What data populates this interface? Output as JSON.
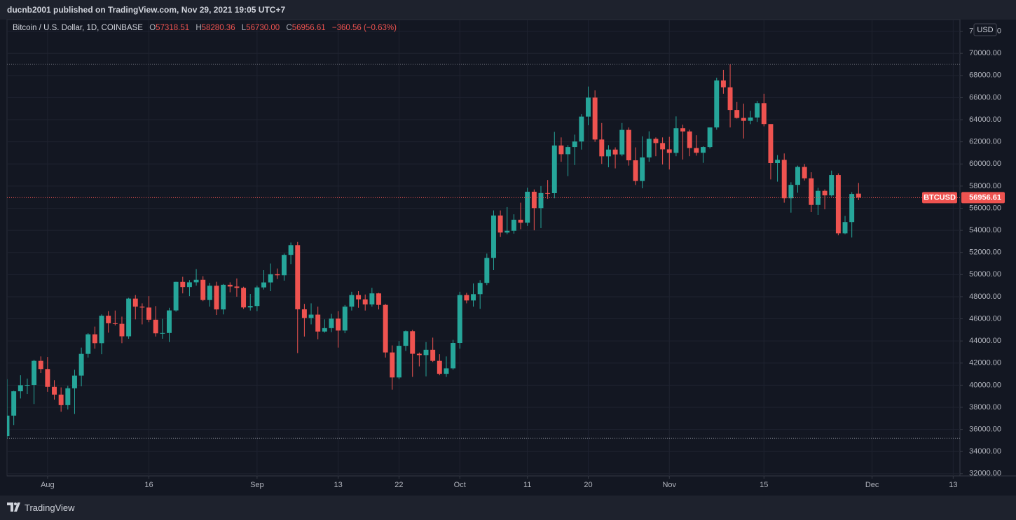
{
  "header": {
    "published": "ducnb2001 published on TradingView.com, Nov 29, 2021 19:05 UTC+7"
  },
  "footer": {
    "brand": "TradingView"
  },
  "chart_data": {
    "type": "candlestick",
    "title": "Bitcoin / U.S. Dollar, 1D, COINBASE",
    "legend": {
      "o": "O",
      "open": "57318.51",
      "h": "H",
      "high": "58280.36",
      "l": "L",
      "low": "56730.00",
      "c": "C",
      "close": "56956.61",
      "change": "−360.56 (−0.63%)"
    },
    "currency": "USD",
    "symbol": "BTCUSD",
    "up_color": "#26a69a",
    "down_color": "#ef5350",
    "grid": true,
    "xlim": [
      "2021-07-26",
      "2021-12-14"
    ],
    "xticks": [
      {
        "value": "2021-08-01",
        "label": "Aug"
      },
      {
        "value": "2021-08-16",
        "label": "16"
      },
      {
        "value": "2021-09-01",
        "label": "Sep"
      },
      {
        "value": "2021-09-13",
        "label": "13"
      },
      {
        "value": "2021-09-22",
        "label": "22"
      },
      {
        "value": "2021-10-01",
        "label": "Oct"
      },
      {
        "value": "2021-10-11",
        "label": "11"
      },
      {
        "value": "2021-10-20",
        "label": "20"
      },
      {
        "value": "2021-11-01",
        "label": "Nov"
      },
      {
        "value": "2021-11-15",
        "label": "15"
      },
      {
        "value": "2021-12-01",
        "label": "Dec"
      },
      {
        "value": "2021-12-13",
        "label": "13"
      }
    ],
    "ylim": [
      31800,
      73050
    ],
    "yticks": [
      {
        "value": 32000,
        "label": "32000.00"
      },
      {
        "value": 34000,
        "label": "34000.00"
      },
      {
        "value": 36000,
        "label": "36000.00"
      },
      {
        "value": 38000,
        "label": "38000.00"
      },
      {
        "value": 40000,
        "label": "40000.00"
      },
      {
        "value": 42000,
        "label": "42000.00"
      },
      {
        "value": 44000,
        "label": "44000.00"
      },
      {
        "value": 46000,
        "label": "46000.00"
      },
      {
        "value": 48000,
        "label": "48000.00"
      },
      {
        "value": 50000,
        "label": "50000.00"
      },
      {
        "value": 52000,
        "label": "52000.00"
      },
      {
        "value": 54000,
        "label": "54000.00"
      },
      {
        "value": 56000,
        "label": "56000.00"
      },
      {
        "value": 58000,
        "label": "58000.00"
      },
      {
        "value": 60000,
        "label": "60000.00"
      },
      {
        "value": 62000,
        "label": "62000.00"
      },
      {
        "value": 64000,
        "label": "64000.00"
      },
      {
        "value": 66000,
        "label": "66000.00"
      },
      {
        "value": 68000,
        "label": "68000.00"
      },
      {
        "value": 70000,
        "label": "70000.00"
      },
      {
        "value": 72000,
        "label": "72000.00"
      }
    ],
    "x": [
      "2021-07-26",
      "2021-07-27",
      "2021-07-28",
      "2021-07-29",
      "2021-07-30",
      "2021-07-31",
      "2021-08-01",
      "2021-08-02",
      "2021-08-03",
      "2021-08-04",
      "2021-08-05",
      "2021-08-06",
      "2021-08-07",
      "2021-08-08",
      "2021-08-09",
      "2021-08-10",
      "2021-08-11",
      "2021-08-12",
      "2021-08-13",
      "2021-08-14",
      "2021-08-15",
      "2021-08-16",
      "2021-08-17",
      "2021-08-18",
      "2021-08-19",
      "2021-08-20",
      "2021-08-21",
      "2021-08-22",
      "2021-08-23",
      "2021-08-24",
      "2021-08-25",
      "2021-08-26",
      "2021-08-27",
      "2021-08-28",
      "2021-08-29",
      "2021-08-30",
      "2021-08-31",
      "2021-09-01",
      "2021-09-02",
      "2021-09-03",
      "2021-09-04",
      "2021-09-05",
      "2021-09-06",
      "2021-09-07",
      "2021-09-08",
      "2021-09-09",
      "2021-09-10",
      "2021-09-11",
      "2021-09-12",
      "2021-09-13",
      "2021-09-14",
      "2021-09-15",
      "2021-09-16",
      "2021-09-17",
      "2021-09-18",
      "2021-09-19",
      "2021-09-20",
      "2021-09-21",
      "2021-09-22",
      "2021-09-23",
      "2021-09-24",
      "2021-09-25",
      "2021-09-26",
      "2021-09-27",
      "2021-09-28",
      "2021-09-29",
      "2021-09-30",
      "2021-10-01",
      "2021-10-02",
      "2021-10-03",
      "2021-10-04",
      "2021-10-05",
      "2021-10-06",
      "2021-10-07",
      "2021-10-08",
      "2021-10-09",
      "2021-10-10",
      "2021-10-11",
      "2021-10-12",
      "2021-10-13",
      "2021-10-14",
      "2021-10-15",
      "2021-10-16",
      "2021-10-17",
      "2021-10-18",
      "2021-10-19",
      "2021-10-20",
      "2021-10-21",
      "2021-10-22",
      "2021-10-23",
      "2021-10-24",
      "2021-10-25",
      "2021-10-26",
      "2021-10-27",
      "2021-10-28",
      "2021-10-29",
      "2021-10-30",
      "2021-10-31",
      "2021-11-01",
      "2021-11-02",
      "2021-11-03",
      "2021-11-04",
      "2021-11-05",
      "2021-11-06",
      "2021-11-07",
      "2021-11-08",
      "2021-11-09",
      "2021-11-10",
      "2021-11-11",
      "2021-11-12",
      "2021-11-13",
      "2021-11-14",
      "2021-11-15",
      "2021-11-16",
      "2021-11-17",
      "2021-11-18",
      "2021-11-19",
      "2021-11-20",
      "2021-11-21",
      "2021-11-22",
      "2021-11-23",
      "2021-11-24",
      "2021-11-25",
      "2021-11-26",
      "2021-11-27",
      "2021-11-28",
      "2021-11-29"
    ],
    "candles": [
      [
        35400,
        40550,
        35200,
        37250
      ],
      [
        37250,
        39500,
        36400,
        39450
      ],
      [
        39450,
        40900,
        38800,
        40000
      ],
      [
        40000,
        40600,
        39200,
        40020
      ],
      [
        40020,
        42300,
        38300,
        42200
      ],
      [
        42200,
        42600,
        41100,
        41460
      ],
      [
        41460,
        42550,
        39400,
        39850
      ],
      [
        39850,
        40450,
        38700,
        39150
      ],
      [
        39150,
        39800,
        37600,
        38200
      ],
      [
        38200,
        39950,
        37800,
        39720
      ],
      [
        39720,
        41400,
        37400,
        40870
      ],
      [
        40870,
        43400,
        39900,
        42830
      ],
      [
        42830,
        44700,
        42500,
        44600
      ],
      [
        44600,
        45300,
        43300,
        43800
      ],
      [
        43800,
        46400,
        42800,
        46280
      ],
      [
        46280,
        46700,
        44750,
        45600
      ],
      [
        45600,
        46750,
        45400,
        45550
      ],
      [
        45550,
        46200,
        43800,
        44420
      ],
      [
        44420,
        47900,
        44200,
        47830
      ],
      [
        47830,
        48150,
        45950,
        47100
      ],
      [
        47100,
        47400,
        45500,
        47020
      ],
      [
        47020,
        48050,
        45700,
        45920
      ],
      [
        45920,
        47150,
        44400,
        44690
      ],
      [
        44690,
        46000,
        44200,
        44720
      ],
      [
        44720,
        47000,
        43900,
        46760
      ],
      [
        46760,
        49350,
        46650,
        49340
      ],
      [
        49340,
        49800,
        48300,
        48870
      ],
      [
        48870,
        49500,
        48050,
        49300
      ],
      [
        49300,
        50500,
        49000,
        49530
      ],
      [
        49530,
        49850,
        47600,
        47700
      ],
      [
        47700,
        49250,
        47100,
        48990
      ],
      [
        48990,
        49350,
        46350,
        46850
      ],
      [
        46850,
        49150,
        46400,
        49080
      ],
      [
        49080,
        49300,
        48400,
        48920
      ],
      [
        48920,
        49650,
        48000,
        48800
      ],
      [
        48800,
        48900,
        46900,
        47030
      ],
      [
        47030,
        48250,
        46750,
        47160
      ],
      [
        47160,
        49000,
        46700,
        48840
      ],
      [
        48840,
        50400,
        48650,
        49290
      ],
      [
        49290,
        51000,
        48500,
        50030
      ],
      [
        50030,
        50550,
        49600,
        49940
      ],
      [
        49940,
        51900,
        49450,
        51780
      ],
      [
        51780,
        52900,
        50950,
        52660
      ],
      [
        52660,
        52950,
        42900,
        46860
      ],
      [
        46860,
        47350,
        44400,
        46080
      ],
      [
        46080,
        47400,
        45500,
        46380
      ],
      [
        46380,
        47100,
        44150,
        44850
      ],
      [
        44850,
        45950,
        44750,
        45160
      ],
      [
        45160,
        46450,
        44800,
        46020
      ],
      [
        46020,
        46700,
        43400,
        44940
      ],
      [
        44940,
        47250,
        44700,
        47100
      ],
      [
        47100,
        48450,
        46750,
        48150
      ],
      [
        48150,
        48500,
        47000,
        47760
      ],
      [
        47760,
        48200,
        46750,
        47300
      ],
      [
        47300,
        48800,
        47100,
        48300
      ],
      [
        48300,
        48350,
        46850,
        47260
      ],
      [
        47260,
        47350,
        42500,
        42960
      ],
      [
        42960,
        43600,
        39600,
        40700
      ],
      [
        40700,
        44000,
        40550,
        43560
      ],
      [
        43560,
        44950,
        43100,
        44880
      ],
      [
        44880,
        45000,
        40750,
        42840
      ],
      [
        42840,
        42950,
        41700,
        42720
      ],
      [
        42720,
        43900,
        40800,
        43200
      ],
      [
        43200,
        44300,
        42100,
        42200
      ],
      [
        42200,
        42800,
        40900,
        41030
      ],
      [
        41030,
        42600,
        40750,
        41520
      ],
      [
        41520,
        44100,
        41400,
        43820
      ],
      [
        43820,
        48450,
        43300,
        48150
      ],
      [
        48150,
        48350,
        47400,
        47660
      ],
      [
        47660,
        49200,
        47100,
        48230
      ],
      [
        48230,
        49500,
        46900,
        49250
      ],
      [
        49250,
        51900,
        49050,
        51500
      ],
      [
        51500,
        55800,
        50400,
        55340
      ],
      [
        55340,
        55800,
        53400,
        53800
      ],
      [
        53800,
        56100,
        53650,
        53960
      ],
      [
        53960,
        55450,
        53700,
        54960
      ],
      [
        54960,
        56500,
        54100,
        54690
      ],
      [
        54690,
        57850,
        54400,
        57490
      ],
      [
        57490,
        57700,
        54000,
        56010
      ],
      [
        56010,
        58000,
        54200,
        57370
      ],
      [
        57370,
        58550,
        56850,
        57360
      ],
      [
        57360,
        62900,
        56900,
        61670
      ],
      [
        61670,
        62400,
        60200,
        60880
      ],
      [
        60880,
        61700,
        58900,
        61530
      ],
      [
        61530,
        62650,
        59900,
        62030
      ],
      [
        62030,
        64500,
        61300,
        64280
      ],
      [
        64280,
        67000,
        63500,
        66000
      ],
      [
        66000,
        66650,
        62000,
        62210
      ],
      [
        62210,
        63700,
        60000,
        60690
      ],
      [
        60690,
        61700,
        59700,
        61300
      ],
      [
        61300,
        61500,
        59600,
        60860
      ],
      [
        60860,
        63700,
        60700,
        63080
      ],
      [
        63080,
        63300,
        59850,
        60330
      ],
      [
        60330,
        61500,
        58100,
        58460
      ],
      [
        58460,
        62500,
        57800,
        60590
      ],
      [
        60590,
        62950,
        60200,
        62270
      ],
      [
        62270,
        62400,
        60700,
        61890
      ],
      [
        61890,
        62400,
        59950,
        61320
      ],
      [
        61320,
        62450,
        59500,
        61000
      ],
      [
        61000,
        64300,
        60700,
        63230
      ],
      [
        63230,
        63550,
        60400,
        62940
      ],
      [
        62940,
        63100,
        60700,
        61440
      ],
      [
        61440,
        62600,
        60750,
        61010
      ],
      [
        61010,
        61600,
        60100,
        61530
      ],
      [
        61530,
        63300,
        61400,
        63300
      ],
      [
        63300,
        67800,
        63100,
        67550
      ],
      [
        67550,
        68500,
        66350,
        66930
      ],
      [
        66930,
        69000,
        63300,
        64880
      ],
      [
        64880,
        65600,
        64100,
        64160
      ],
      [
        64160,
        65450,
        62300,
        63900
      ],
      [
        63900,
        64800,
        63600,
        64200
      ],
      [
        64200,
        65700,
        63800,
        65500
      ],
      [
        65500,
        66350,
        63400,
        63610
      ],
      [
        63610,
        63600,
        58600,
        60080
      ],
      [
        60080,
        60800,
        58400,
        60370
      ],
      [
        60370,
        60950,
        56500,
        56900
      ],
      [
        56900,
        58350,
        55600,
        58110
      ],
      [
        58110,
        59850,
        57400,
        59730
      ],
      [
        59730,
        60000,
        58500,
        58700
      ],
      [
        58700,
        59250,
        55650,
        56300
      ],
      [
        56300,
        57850,
        55400,
        57570
      ],
      [
        57570,
        57700,
        55900,
        57160
      ],
      [
        57160,
        59400,
        57050,
        59000
      ],
      [
        59000,
        59150,
        53550,
        53730
      ],
      [
        53730,
        55300,
        53650,
        54750
      ],
      [
        54750,
        57450,
        53350,
        57290
      ],
      [
        57318.51,
        58280.36,
        56730,
        56956.61
      ]
    ]
  }
}
